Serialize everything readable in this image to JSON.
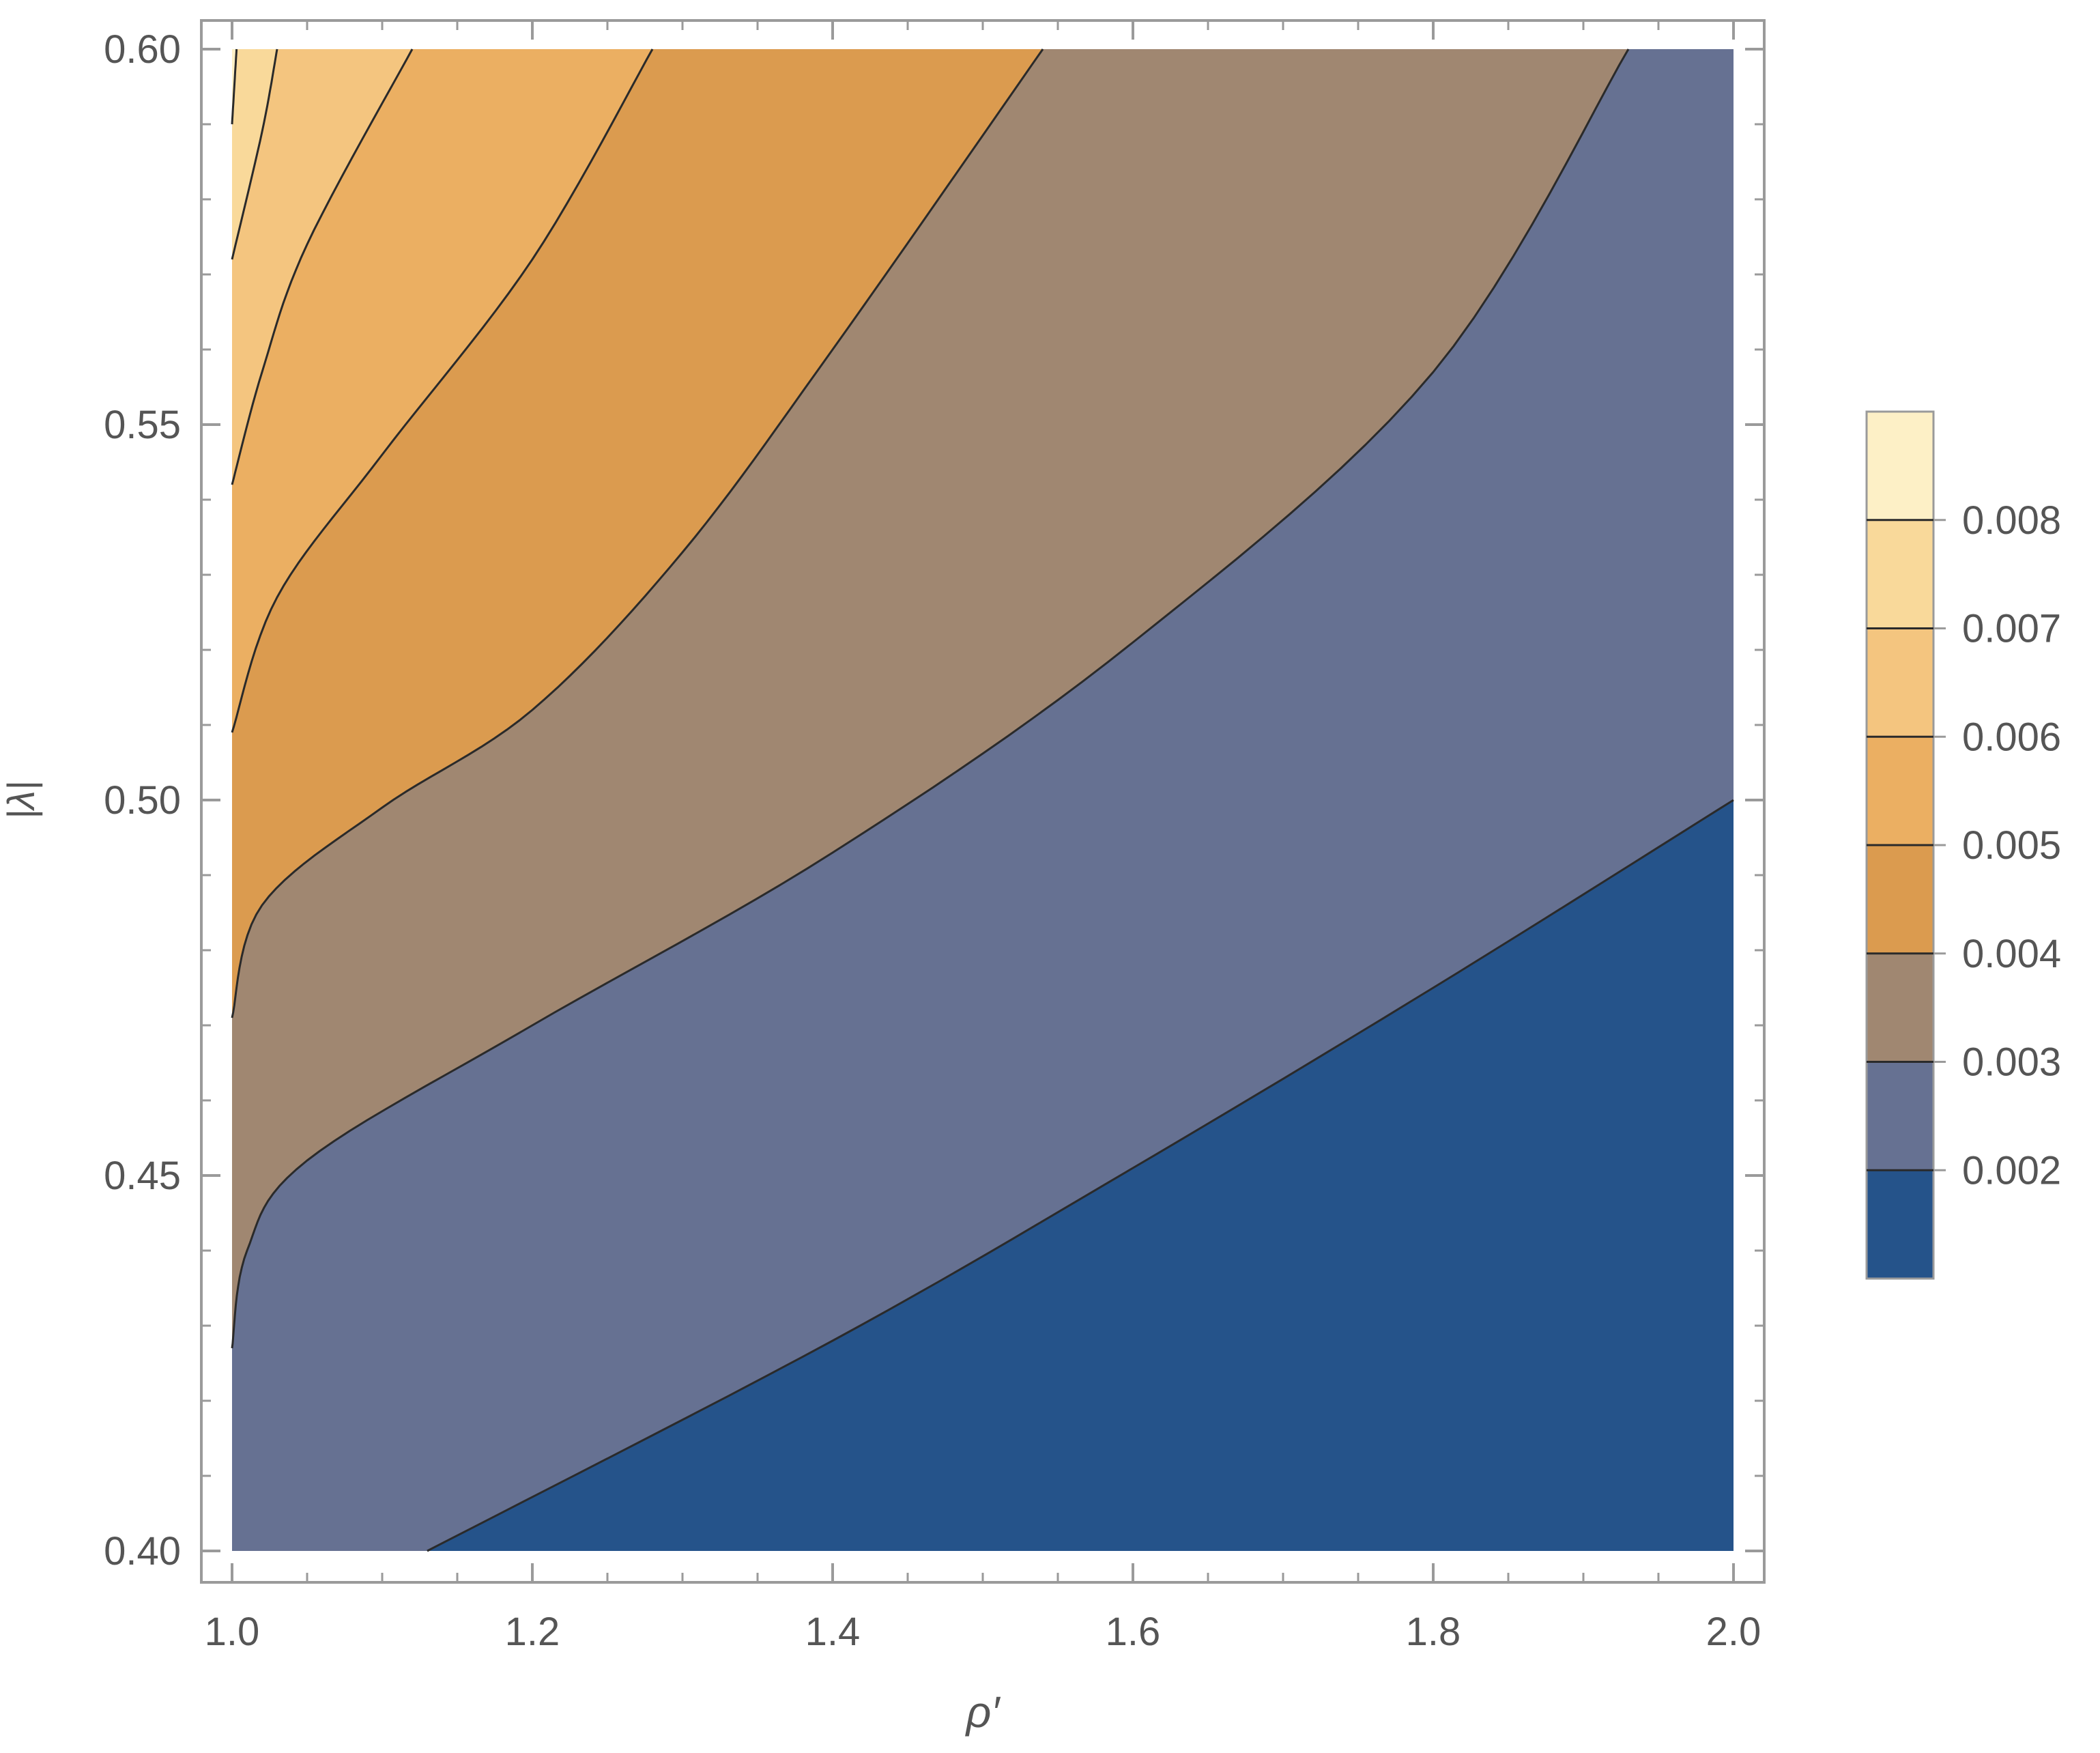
{
  "chart_data": {
    "type": "contour",
    "title": "",
    "xlabel": "ρ′",
    "ylabel": "|λ|",
    "xlim": [
      1.0,
      2.0
    ],
    "ylim": [
      0.4,
      0.6
    ],
    "x_ticks": [
      "1.0",
      "1.2",
      "1.4",
      "1.6",
      "1.8",
      "2.0"
    ],
    "y_ticks": [
      "0.40",
      "0.45",
      "0.50",
      "0.55",
      "0.60"
    ],
    "x_tick_values": [
      1.0,
      1.2,
      1.4,
      1.6,
      1.8,
      2.0
    ],
    "y_tick_values": [
      0.4,
      0.45,
      0.5,
      0.55,
      0.6
    ],
    "legend_placement": "right",
    "grid": false,
    "contour_levels": [
      {
        "value": 0.002,
        "label": "0.002",
        "points": [
          [
            1.13,
            0.4
          ],
          [
            1.4,
            0.428
          ],
          [
            1.6,
            0.451
          ],
          [
            1.8,
            0.475
          ],
          [
            2.0,
            0.5
          ]
        ]
      },
      {
        "value": 0.003,
        "label": "0.003",
        "points": [
          [
            1.0,
            0.427
          ],
          [
            1.01,
            0.44
          ],
          [
            1.05,
            0.452
          ],
          [
            1.2,
            0.47
          ],
          [
            1.4,
            0.493
          ],
          [
            1.6,
            0.521
          ],
          [
            1.8,
            0.557
          ],
          [
            1.93,
            0.6
          ]
        ]
      },
      {
        "value": 0.004,
        "label": "0.004",
        "points": [
          [
            1.0,
            0.471
          ],
          [
            1.02,
            0.486
          ],
          [
            1.1,
            0.499
          ],
          [
            1.2,
            0.512
          ],
          [
            1.3,
            0.533
          ],
          [
            1.4,
            0.56
          ],
          [
            1.54,
            0.6
          ]
        ]
      },
      {
        "value": 0.005,
        "label": "0.005",
        "points": [
          [
            1.0,
            0.509
          ],
          [
            1.03,
            0.527
          ],
          [
            1.1,
            0.546
          ],
          [
            1.2,
            0.572
          ],
          [
            1.28,
            0.6
          ]
        ]
      },
      {
        "value": 0.006,
        "label": "0.006",
        "points": [
          [
            1.0,
            0.542
          ],
          [
            1.02,
            0.557
          ],
          [
            1.05,
            0.574
          ],
          [
            1.12,
            0.6
          ]
        ]
      },
      {
        "value": 0.007,
        "label": "0.007",
        "points": [
          [
            1.0,
            0.572
          ],
          [
            1.02,
            0.589
          ],
          [
            1.03,
            0.6
          ]
        ]
      },
      {
        "value": 0.008,
        "label": "0.008",
        "points": [
          [
            1.0,
            0.59
          ],
          [
            1.003,
            0.6
          ]
        ]
      }
    ],
    "band_colors": [
      "#25538a",
      "#667192",
      "#a08771",
      "#db9b4f",
      "#ebaf62",
      "#f4c57f",
      "#f9d99a",
      "#fdf0c6"
    ]
  }
}
